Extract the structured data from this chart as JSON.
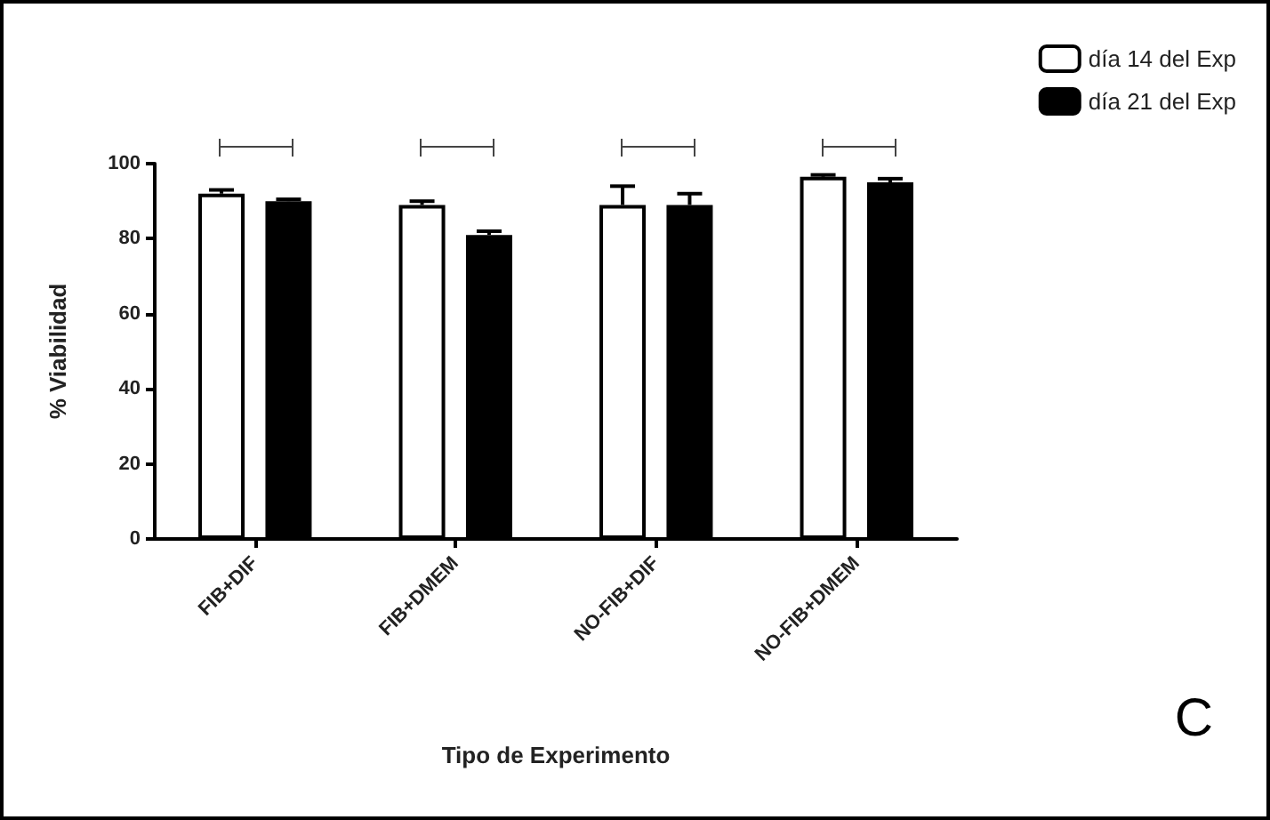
{
  "chart_data": {
    "type": "bar",
    "xlabel": "Tipo de Experimento",
    "ylabel": "% Viabilidad",
    "categories": [
      "FIB+DIF",
      "FIB+DMEM",
      "NO-FIB+DIF",
      "NO-FIB+DMEM"
    ],
    "series": [
      {
        "name": "día 14 del Exp",
        "color": "#ffffff",
        "values": [
          92,
          89,
          89,
          96.5
        ],
        "errors": [
          1,
          1,
          5,
          0.5
        ]
      },
      {
        "name": "día 21 del Exp",
        "color": "#000000",
        "values": [
          90,
          81,
          89,
          95
        ],
        "errors": [
          0.5,
          1,
          3,
          1
        ]
      }
    ],
    "ylim": [
      0,
      100
    ],
    "yticks": [
      0,
      20,
      40,
      60,
      80,
      100
    ],
    "grid": false,
    "legend": "top right",
    "annotations": [
      "C"
    ]
  }
}
